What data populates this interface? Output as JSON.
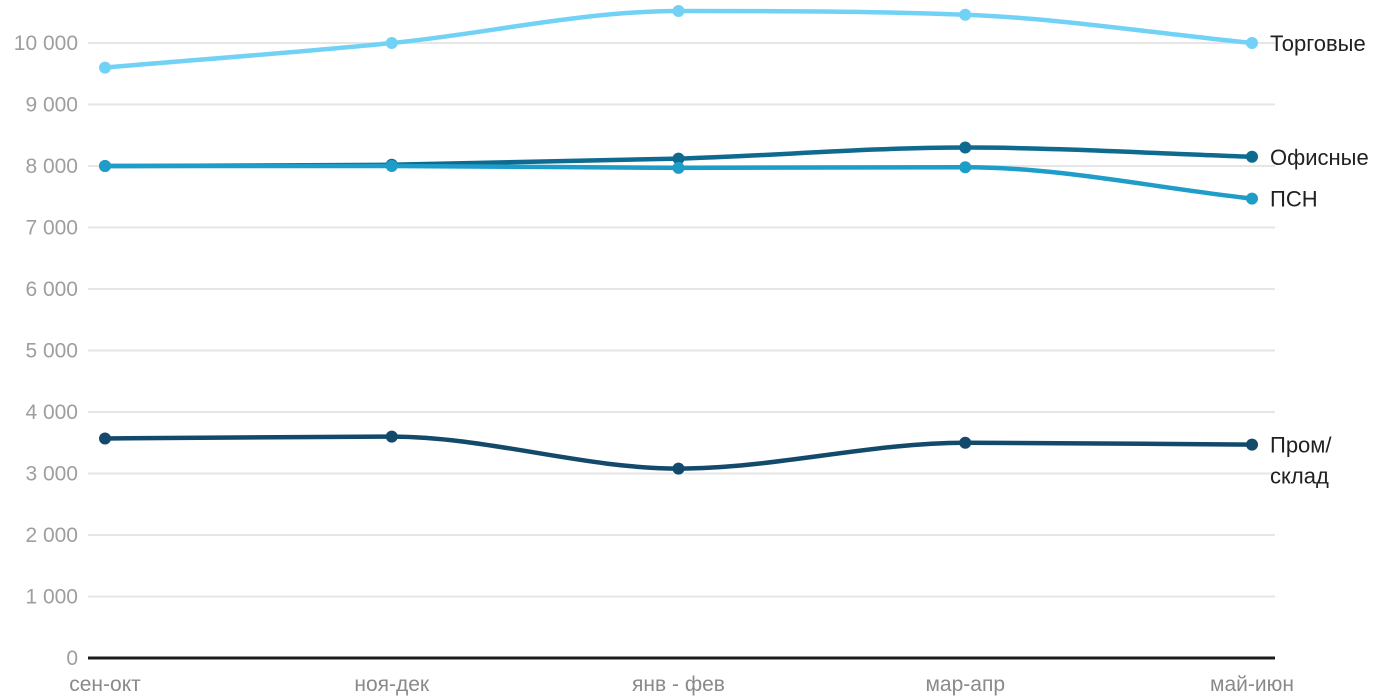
{
  "chart_data": {
    "type": "line",
    "title": "",
    "xlabel": "",
    "ylabel": "",
    "grid": true,
    "legend_position": "right-end-of-lines",
    "curve": "monotone",
    "ylim": [
      0,
      10000
    ],
    "y_ticks": [
      0,
      1000,
      2000,
      3000,
      4000,
      5000,
      6000,
      7000,
      8000,
      9000,
      10000
    ],
    "y_tick_labels": [
      "0",
      "1 000",
      "2 000",
      "3 000",
      "4 000",
      "5 000",
      "6 000",
      "7 000",
      "8 000",
      "9 000",
      "10 000"
    ],
    "categories": [
      "сен-окт",
      "ноя-дек",
      "янв - фев",
      "мар-апр",
      "май-июн"
    ],
    "series": [
      {
        "id": "torgovye",
        "name": "Торговые",
        "label_lines": [
          "Торговые"
        ],
        "color": "#72d2f6",
        "values": [
          9600,
          10000,
          10520,
          10460,
          10000
        ]
      },
      {
        "id": "ofisnye",
        "name": "Офисные",
        "label_lines": [
          "Офисные"
        ],
        "color": "#0f6a90",
        "values": [
          8000,
          8020,
          8120,
          8300,
          8150
        ]
      },
      {
        "id": "psn",
        "name": "ПСН",
        "label_lines": [
          "ПСН"
        ],
        "color": "#1f9dc9",
        "values": [
          8000,
          8000,
          7970,
          7980,
          7470
        ]
      },
      {
        "id": "prom-sklad",
        "name": "Пром/склад",
        "label_lines": [
          "Пром/",
          "склад"
        ],
        "color": "#134a6c",
        "values": [
          3570,
          3600,
          3080,
          3500,
          3470
        ]
      }
    ],
    "colors": {
      "background": "#ffffff",
      "gridline": "#e6e6e6",
      "axis_line": "#1c1c1c",
      "y_tick_text": "#9e9e9e",
      "x_tick_text": "#8a8a8a",
      "series_label_text": "#212121"
    }
  }
}
